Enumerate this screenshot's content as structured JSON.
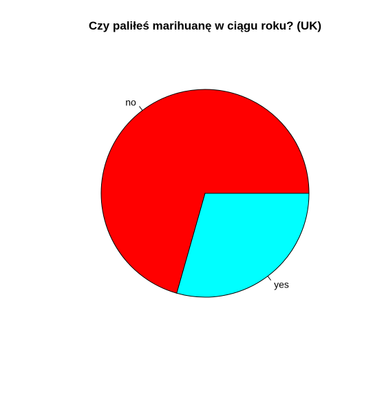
{
  "chart_data": {
    "type": "pie",
    "title": "Czy paliłeś marihuanę w ciągu roku? (UK)",
    "slices": [
      {
        "label": "no",
        "value": 70.6,
        "color": "#ff0000"
      },
      {
        "label": "yes",
        "value": 29.4,
        "color": "#00ffff"
      }
    ],
    "start_angle_deg": 0,
    "direction": "counterclockwise",
    "legend": "none"
  }
}
